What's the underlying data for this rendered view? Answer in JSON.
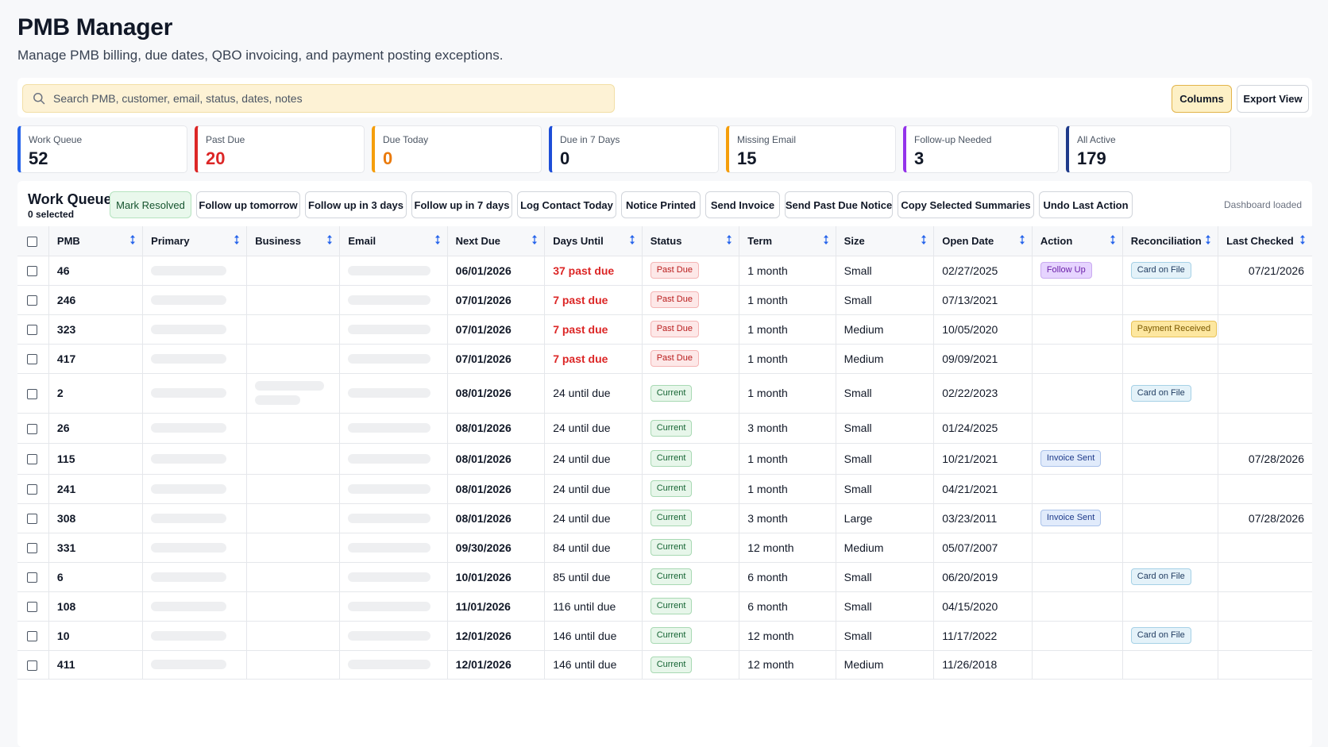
{
  "header": {
    "title": "PMB Manager",
    "subtitle": "Manage PMB billing, due dates, QBO invoicing, and payment posting exceptions."
  },
  "search": {
    "placeholder": "Search PMB, customer, email, status, dates, notes",
    "value": ""
  },
  "toolbar": {
    "columns_label": "Columns",
    "export_label": "Export View"
  },
  "summary_cards": [
    {
      "label": "Work Queue",
      "value": "52",
      "accent": "#2563eb",
      "value_color": "#111827"
    },
    {
      "label": "Past Due",
      "value": "20",
      "accent": "#dc2626",
      "value_color": "#dc2626"
    },
    {
      "label": "Due Today",
      "value": "0",
      "accent": "#f59e0b",
      "value_color": "#ea7a0c"
    },
    {
      "label": "Due in 7 Days",
      "value": "0",
      "accent": "#1d4ed8",
      "value_color": "#111827"
    },
    {
      "label": "Missing Email",
      "value": "15",
      "accent": "#f59e0b",
      "value_color": "#111827"
    },
    {
      "label": "Follow-up Needed",
      "value": "3",
      "accent": "#9333ea",
      "value_color": "#111827"
    },
    {
      "label": "All Active",
      "value": "179",
      "accent": "#1e3a8a",
      "value_color": "#111827"
    }
  ],
  "work_queue": {
    "title": "Work Queue",
    "selected_text": "0 selected",
    "status_text": "Dashboard loaded",
    "actions": [
      "Mark Resolved",
      "Follow up tomorrow",
      "Follow up in 3 days",
      "Follow up in 7 days",
      "Log Contact Today",
      "Notice Printed",
      "Send Invoice",
      "Send Past Due Notice",
      "Copy Selected Summaries",
      "Undo Last Action"
    ]
  },
  "table": {
    "columns": [
      "PMB",
      "Primary",
      "Business",
      "Email",
      "Next Due",
      "Days Until",
      "Status",
      "Term",
      "Size",
      "Open Date",
      "Action",
      "Reconciliation",
      "Last Checked"
    ],
    "rows": [
      {
        "pmb": "46",
        "business_lines": 0,
        "next_due": "06/01/2026",
        "days_until": "37 past due",
        "past_due": true,
        "status": "Past Due",
        "term": "1 month",
        "size": "Small",
        "open_date": "02/27/2025",
        "action": "Follow Up",
        "reconciliation": "Card on File",
        "last_checked": "07/21/2026"
      },
      {
        "pmb": "246",
        "business_lines": 0,
        "next_due": "07/01/2026",
        "days_until": "7 past due",
        "past_due": true,
        "status": "Past Due",
        "term": "1 month",
        "size": "Small",
        "open_date": "07/13/2021",
        "action": "",
        "reconciliation": "",
        "last_checked": ""
      },
      {
        "pmb": "323",
        "business_lines": 0,
        "next_due": "07/01/2026",
        "days_until": "7 past due",
        "past_due": true,
        "status": "Past Due",
        "term": "1 month",
        "size": "Medium",
        "open_date": "10/05/2020",
        "action": "",
        "reconciliation": "Payment Received",
        "last_checked": ""
      },
      {
        "pmb": "417",
        "business_lines": 0,
        "next_due": "07/01/2026",
        "days_until": "7 past due",
        "past_due": true,
        "status": "Past Due",
        "term": "1 month",
        "size": "Medium",
        "open_date": "09/09/2021",
        "action": "",
        "reconciliation": "",
        "last_checked": ""
      },
      {
        "pmb": "2",
        "business_lines": 2,
        "next_due": "08/01/2026",
        "days_until": "24 until due",
        "past_due": false,
        "status": "Current",
        "term": "1 month",
        "size": "Small",
        "open_date": "02/22/2023",
        "action": "",
        "reconciliation": "Card on File",
        "last_checked": ""
      },
      {
        "pmb": "26",
        "business_lines": 0,
        "next_due": "08/01/2026",
        "days_until": "24 until due",
        "past_due": false,
        "status": "Current",
        "term": "3 month",
        "size": "Small",
        "open_date": "01/24/2025",
        "action": "",
        "reconciliation": "",
        "last_checked": ""
      },
      {
        "pmb": "115",
        "business_lines": 0,
        "next_due": "08/01/2026",
        "days_until": "24 until due",
        "past_due": false,
        "status": "Current",
        "term": "1 month",
        "size": "Small",
        "open_date": "10/21/2021",
        "action": "Invoice Sent",
        "reconciliation": "",
        "last_checked": "07/28/2026"
      },
      {
        "pmb": "241",
        "business_lines": 0,
        "next_due": "08/01/2026",
        "days_until": "24 until due",
        "past_due": false,
        "status": "Current",
        "term": "1 month",
        "size": "Small",
        "open_date": "04/21/2021",
        "action": "",
        "reconciliation": "",
        "last_checked": ""
      },
      {
        "pmb": "308",
        "business_lines": 0,
        "next_due": "08/01/2026",
        "days_until": "24 until due",
        "past_due": false,
        "status": "Current",
        "term": "3 month",
        "size": "Large",
        "open_date": "03/23/2011",
        "action": "Invoice Sent",
        "reconciliation": "",
        "last_checked": "07/28/2026"
      },
      {
        "pmb": "331",
        "business_lines": 0,
        "next_due": "09/30/2026",
        "days_until": "84 until due",
        "past_due": false,
        "status": "Current",
        "term": "12 month",
        "size": "Medium",
        "open_date": "05/07/2007",
        "action": "",
        "reconciliation": "",
        "last_checked": ""
      },
      {
        "pmb": "6",
        "business_lines": 0,
        "next_due": "10/01/2026",
        "days_until": "85 until due",
        "past_due": false,
        "status": "Current",
        "term": "6 month",
        "size": "Small",
        "open_date": "06/20/2019",
        "action": "",
        "reconciliation": "Card on File",
        "last_checked": ""
      },
      {
        "pmb": "108",
        "business_lines": 0,
        "next_due": "11/01/2026",
        "days_until": "116 until due",
        "past_due": false,
        "status": "Current",
        "term": "6 month",
        "size": "Small",
        "open_date": "04/15/2020",
        "action": "",
        "reconciliation": "",
        "last_checked": ""
      },
      {
        "pmb": "10",
        "business_lines": 0,
        "next_due": "12/01/2026",
        "days_until": "146 until due",
        "past_due": false,
        "status": "Current",
        "term": "12 month",
        "size": "Small",
        "open_date": "11/17/2022",
        "action": "",
        "reconciliation": "Card on File",
        "last_checked": ""
      },
      {
        "pmb": "411",
        "business_lines": 0,
        "next_due": "12/01/2026",
        "days_until": "146 until due",
        "past_due": false,
        "status": "Current",
        "term": "12 month",
        "size": "Medium",
        "open_date": "11/26/2018",
        "action": "",
        "reconciliation": "",
        "last_checked": ""
      }
    ]
  }
}
